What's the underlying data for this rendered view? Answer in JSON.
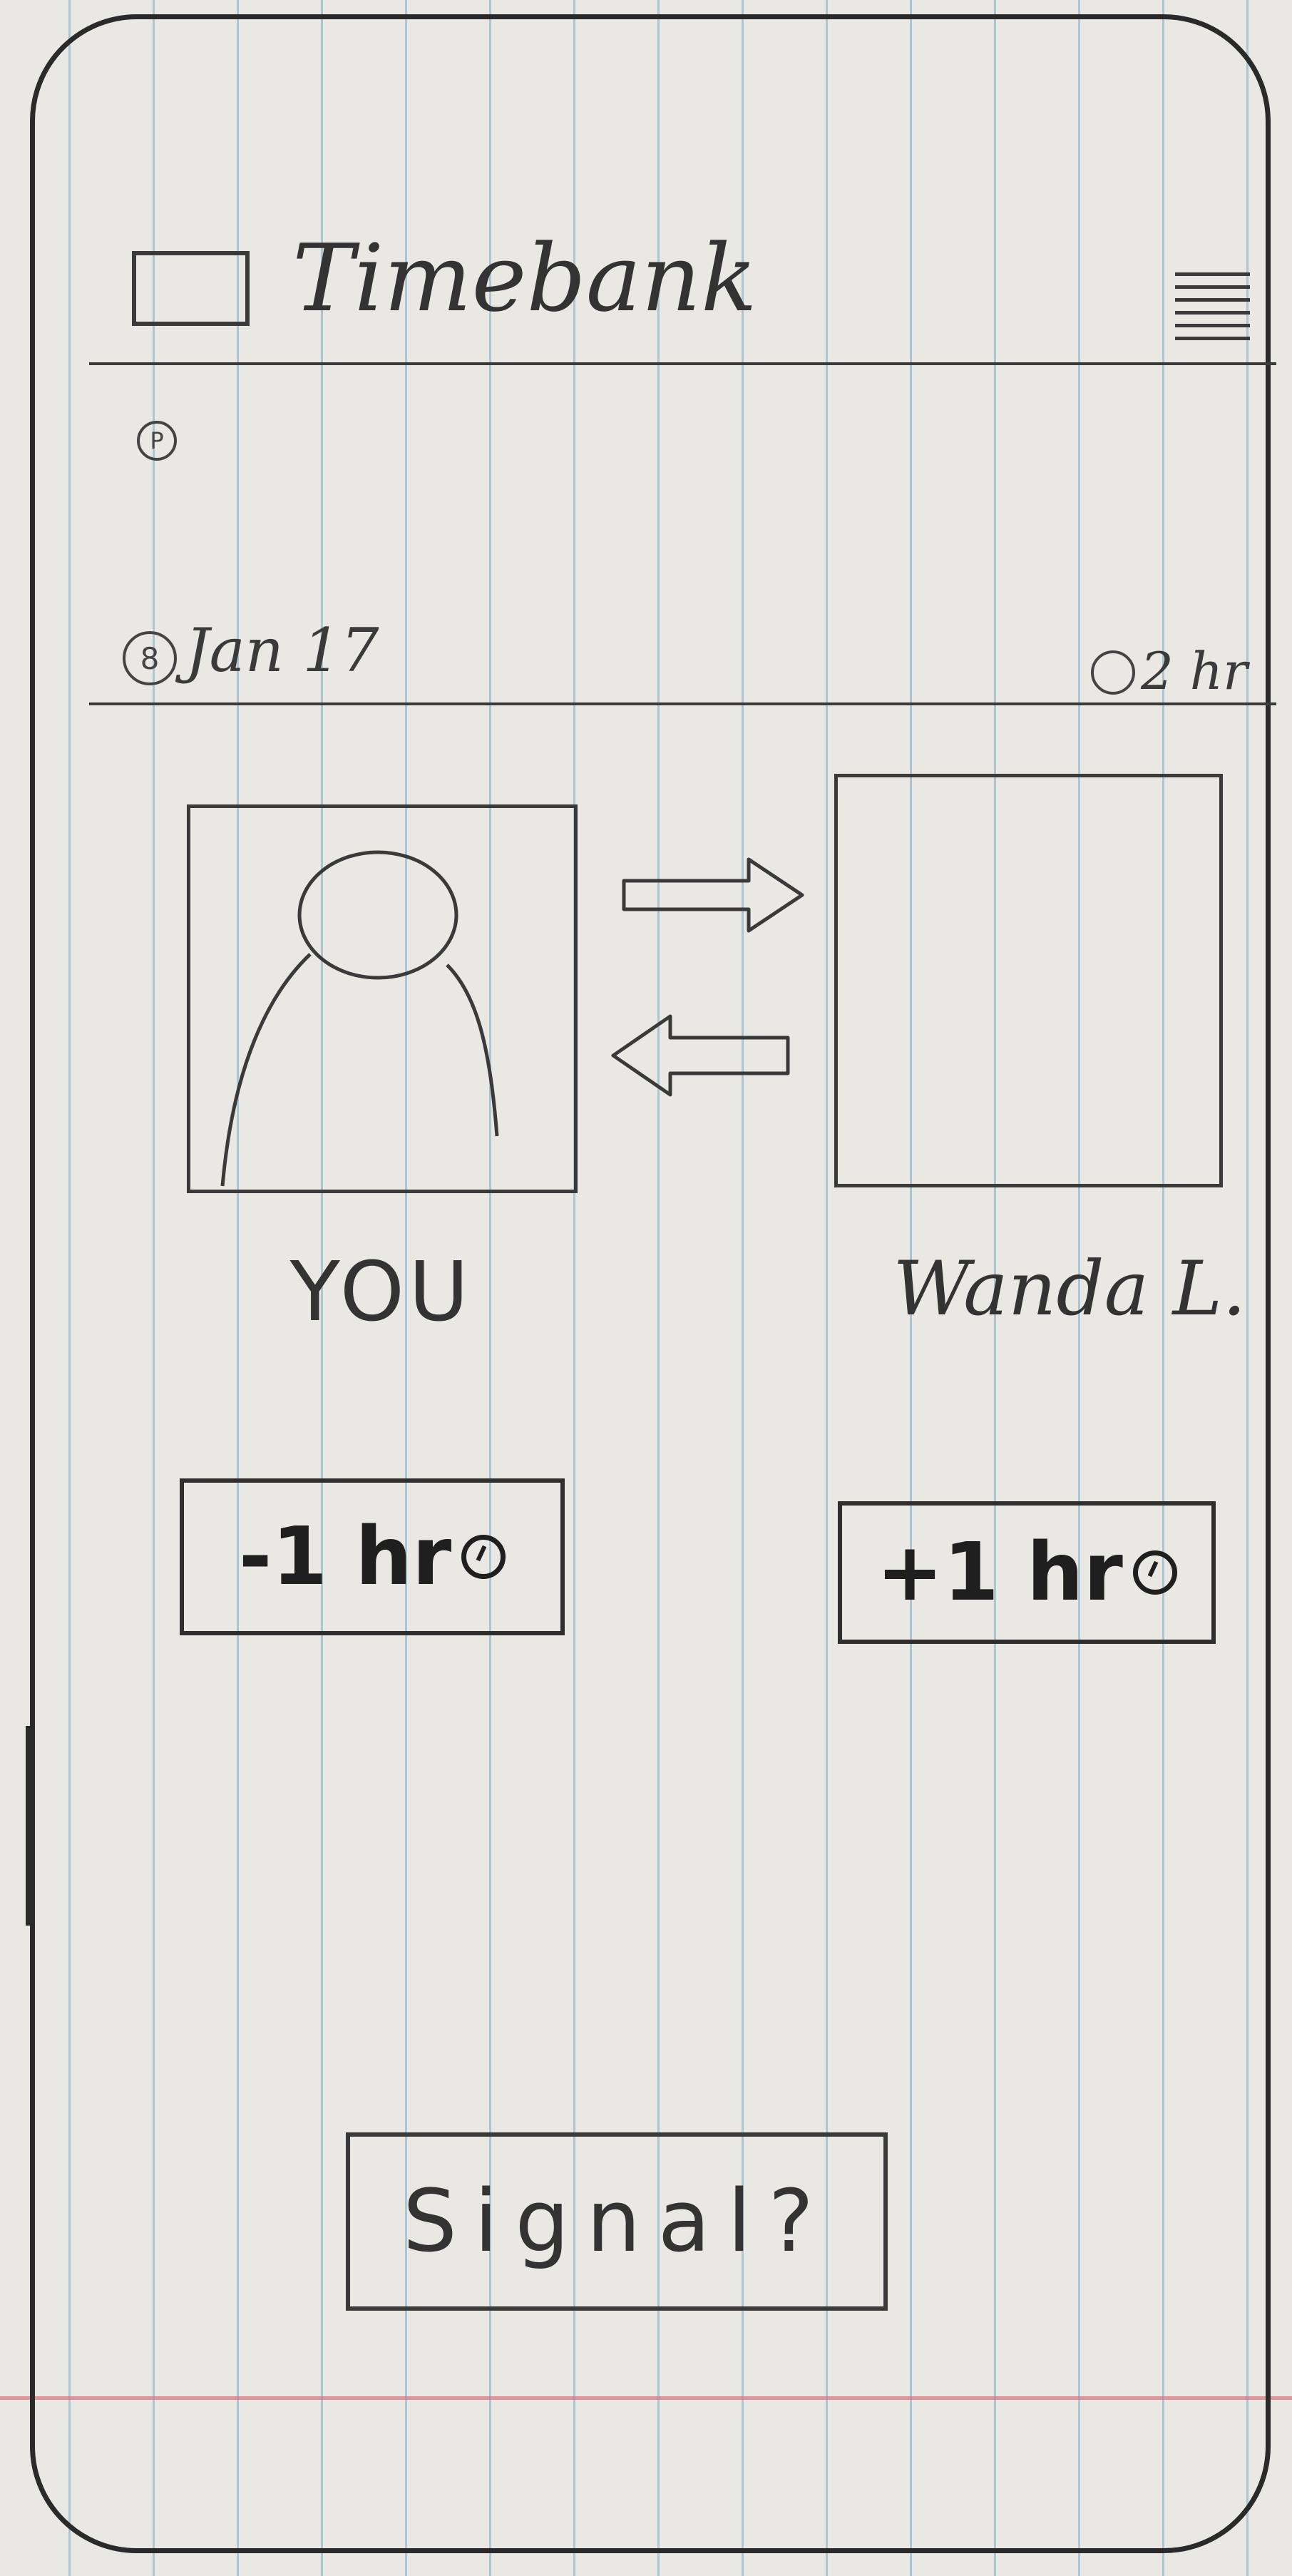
{
  "app": {
    "title": "Timebank"
  },
  "transaction": {
    "date": "Jan 17",
    "duration": "2 hr"
  },
  "parties": {
    "you": {
      "name": "YOU",
      "delta": "-1 hr"
    },
    "other": {
      "name": "Wanda L.",
      "delta": "+1 hr"
    }
  },
  "actions": {
    "signal_label": "Signal?"
  },
  "icons": {
    "logo": "logo-placeholder-icon",
    "menu": "hamburger-menu-icon",
    "profile": "profile-p-icon",
    "calendar": "calendar-icon",
    "clock": "clock-icon",
    "arrow_right": "arrow-right-icon",
    "arrow_left": "arrow-left-icon",
    "user": "user-silhouette-icon"
  },
  "colors": {
    "paper": "#e9e8e3",
    "ink": "#2a2a2a",
    "rule": "#78aac8",
    "margin": "#dc7882"
  }
}
